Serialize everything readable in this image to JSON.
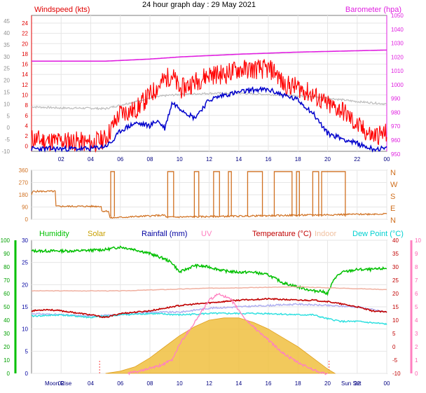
{
  "page_title": "24 hour graph day : 29 May 2021",
  "chart_data": [
    {
      "id": "wind_baro",
      "type": "line",
      "title": "24 hour graph day : 29 May 2021",
      "left_axis": {
        "label": "Windspeed (kts)",
        "ticks": [
          0,
          2,
          4,
          6,
          8,
          10,
          12,
          14,
          16,
          18,
          20,
          22,
          24
        ],
        "range": [
          -1,
          25.5
        ]
      },
      "outer_left_axis": {
        "ticks": [
          -10,
          -5,
          0,
          5,
          10,
          15,
          20,
          25,
          30,
          35,
          40,
          45
        ],
        "range": [
          -10,
          47.4
        ]
      },
      "right_axis": {
        "label": "Barometer (hpa)",
        "ticks": [
          950,
          960,
          970,
          980,
          990,
          1000,
          1010,
          1020,
          1030,
          1040,
          1050
        ],
        "range": [
          951.9,
          1050
        ]
      },
      "x_ticks": [
        "02",
        "04",
        "06",
        "08",
        "10",
        "12",
        "14",
        "16",
        "18",
        "20",
        "22",
        "00"
      ],
      "x_range": [
        0,
        24
      ],
      "series": [
        {
          "name": "Barometer (hpa)",
          "color": "#e020e0",
          "x": [
            0,
            5,
            8,
            10,
            14,
            18,
            22,
            24
          ],
          "values": [
            1017,
            1017,
            1018.5,
            1020,
            1022,
            1023.5,
            1024.5,
            1025
          ]
        },
        {
          "color": "#c0c0c0",
          "x": [
            0,
            2,
            4,
            5,
            6,
            7,
            8,
            9,
            10,
            12,
            14,
            16,
            18,
            20,
            22,
            24
          ],
          "values": [
            8.8,
            8.3,
            8.2,
            8.0,
            9.5,
            11.0,
            12.5,
            13.5,
            14.0,
            14.5,
            14.5,
            14.0,
            13.5,
            12.5,
            11.0,
            10.0
          ]
        },
        {
          "color": "#ff0000",
          "x": [
            0,
            1,
            2,
            3,
            4,
            5,
            5.5,
            6,
            7,
            8,
            9,
            9.5,
            10,
            11,
            12,
            13,
            14,
            15,
            16,
            16.5,
            17,
            18,
            19,
            19.5,
            20,
            21,
            22,
            23,
            24
          ],
          "values": [
            1.5,
            1.0,
            1.0,
            1.0,
            0.5,
            1.5,
            4.0,
            6.5,
            7.0,
            10.0,
            13.0,
            14.0,
            11.0,
            12.5,
            14.0,
            14.0,
            15.0,
            15.0,
            15.0,
            14.5,
            12.0,
            11.5,
            10.0,
            9.0,
            8.0,
            7.0,
            4.0,
            2.0,
            2.5
          ]
        },
        {
          "color": "#0000cc",
          "x": [
            0,
            1,
            2,
            3,
            4,
            5,
            5.5,
            6,
            7,
            8,
            8.5,
            9,
            9.5,
            10,
            11,
            12,
            13,
            14,
            15,
            16,
            17,
            18,
            19,
            20,
            21,
            22,
            23,
            24
          ],
          "values": [
            -0.5,
            -0.5,
            -0.5,
            -0.5,
            -0.5,
            0.0,
            1.0,
            3.0,
            4.5,
            4.0,
            5.0,
            3.5,
            8.5,
            7.5,
            5.5,
            9.0,
            10.0,
            10.5,
            11.0,
            11.0,
            10.0,
            9.0,
            6.5,
            2.5,
            1.5,
            0.5,
            -0.5,
            -0.5
          ]
        }
      ]
    },
    {
      "id": "wind_dir",
      "type": "line",
      "left_ticks": [
        0,
        90,
        180,
        270,
        360
      ],
      "range": [
        0,
        360
      ],
      "right_labels": [
        "N",
        "W",
        "S",
        "E",
        "N"
      ],
      "series": [
        {
          "color": "#d07020",
          "x": [
            0,
            0.1,
            1.6,
            1.65,
            4.7,
            4.75,
            5.2,
            5.3,
            8.0,
            9.0,
            9.1,
            24
          ],
          "values": [
            180,
            205,
            205,
            95,
            95,
            60,
            60,
            10,
            25,
            30,
            15,
            40
          ]
        },
        {
          "color": "#d07020",
          "bands": [
            [
              5.35,
              5.6
            ],
            [
              9.2,
              9.6
            ],
            [
              11.0,
              11.3
            ],
            [
              12.3,
              12.7
            ],
            [
              13.3,
              13.5
            ],
            [
              14.6,
              15.6
            ],
            [
              16.4,
              17.6
            ],
            [
              17.9,
              18.1
            ],
            [
              19.0,
              19.4
            ],
            [
              19.6,
              21.2
            ]
          ],
          "high": 350
        }
      ]
    },
    {
      "id": "temp_panel",
      "type": "line",
      "legend": [
        {
          "label": "Humidity",
          "color": "#00c000"
        },
        {
          "label": "Solar",
          "color": "#c8a000"
        },
        {
          "label": "Rainfall (mm)",
          "color": "#0000a0"
        },
        {
          "label": "UV",
          "color": "#ff80c0"
        },
        {
          "label": "Temperature (°C)",
          "color": "#c00000"
        },
        {
          "label": "Indoor",
          "color": "#f0c0a0"
        },
        {
          "label": "Dew Point (°C)",
          "color": "#00d0d0"
        }
      ],
      "outer_left_ticks": [
        0,
        10,
        20,
        30,
        40,
        50,
        60,
        70,
        80,
        90,
        100
      ],
      "left_ticks": [
        0,
        5,
        10,
        15,
        20,
        25,
        30
      ],
      "right_ticks": [
        -10,
        -5,
        0,
        5,
        10,
        15,
        20,
        25,
        30,
        35,
        40
      ],
      "far_right_ticks": [
        0,
        1,
        2,
        3,
        4,
        5,
        6,
        7,
        8,
        9,
        10
      ],
      "x_ticks": [
        "02",
        "04",
        "06",
        "08",
        "10",
        "12",
        "14",
        "16",
        "18",
        "20",
        "22",
        "00"
      ],
      "annotations": [
        "Moon Rise",
        "Sun Set"
      ],
      "series": [
        {
          "name": "Humidity",
          "color": "#00c000",
          "x": [
            0,
            3,
            5,
            6,
            7,
            8,
            9,
            9.5,
            10,
            11,
            12,
            13,
            14,
            15,
            16,
            17,
            18,
            19,
            19.5,
            20,
            20.5,
            21,
            22,
            23,
            24
          ],
          "values": [
            92,
            92,
            93,
            95,
            93,
            90,
            86,
            83,
            76,
            81,
            80,
            77,
            76,
            76,
            74,
            68,
            65,
            62,
            62,
            60,
            72,
            76,
            78,
            78,
            79
          ]
        },
        {
          "name": "Indoor",
          "color": "#f0b0a0",
          "x": [
            0,
            6,
            12,
            18,
            24
          ],
          "values": [
            21,
            21,
            22,
            22.5,
            21.5
          ]
        },
        {
          "name": "Temperature (°C)",
          "color": "#c00000",
          "x": [
            0,
            1,
            2,
            4,
            5,
            6,
            8,
            10,
            12,
            14,
            16,
            18,
            19,
            20,
            21,
            22,
            23,
            24
          ],
          "values": [
            13.5,
            14.0,
            13.5,
            12.0,
            11.0,
            12.5,
            13.5,
            15.5,
            16.5,
            17.5,
            18.0,
            17.5,
            17.5,
            17.0,
            16.0,
            15.0,
            13.5,
            13.0
          ]
        },
        {
          "color": "#b0b0f0",
          "x": [
            0,
            4,
            6,
            8,
            10,
            12,
            14,
            16,
            18,
            20,
            22,
            24
          ],
          "values": [
            12.5,
            11.5,
            12.0,
            13.0,
            13.0,
            14.5,
            15.0,
            15.5,
            16.0,
            15.5,
            15.0,
            13.0
          ]
        },
        {
          "name": "Dew Point (°C)",
          "color": "#30e0e0",
          "x": [
            0,
            2,
            4,
            6,
            8,
            10,
            12,
            14,
            16,
            18,
            19,
            20,
            21,
            22,
            23,
            24
          ],
          "values": [
            11.5,
            12.0,
            11.0,
            12.0,
            12.5,
            12.0,
            12.5,
            12.5,
            12.5,
            12.0,
            12.0,
            10.5,
            9.5,
            9.5,
            9.0,
            8.5
          ]
        },
        {
          "name": "UV",
          "color": "#ff80c0",
          "x": [
            6.5,
            7.5,
            8,
            8.5,
            9.5,
            10,
            11,
            12,
            12.7,
            13.5,
            14.5,
            15,
            16,
            17,
            18,
            19,
            19.8,
            20
          ],
          "values": [
            0,
            0.2,
            0.4,
            0.5,
            1.0,
            2.2,
            3.8,
            5.5,
            6.0,
            5.5,
            4.0,
            3.5,
            2.5,
            1.5,
            0.8,
            0.3,
            0,
            0
          ]
        },
        {
          "name": "Solar",
          "color": "#f0c040",
          "x": [
            5,
            6,
            7,
            8,
            9,
            10,
            11,
            12,
            13,
            14,
            15,
            16,
            17,
            18,
            19,
            20,
            20.5
          ],
          "values": [
            0,
            0.5,
            1.5,
            3.5,
            6.0,
            8.5,
            10.5,
            12.0,
            12.5,
            12.5,
            11.5,
            10.0,
            8.0,
            6.0,
            3.5,
            1.0,
            0
          ]
        }
      ]
    }
  ]
}
